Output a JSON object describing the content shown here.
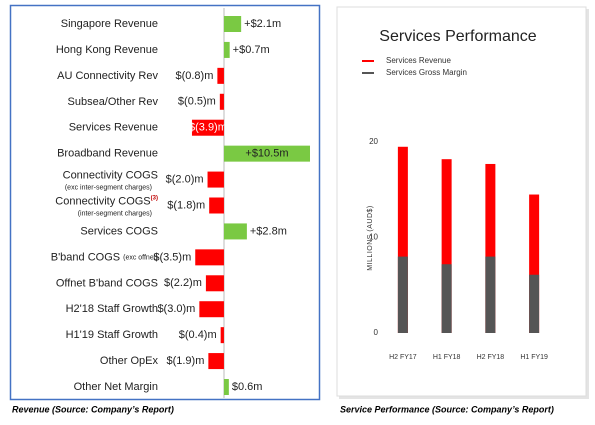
{
  "chart_data": [
    {
      "type": "hbar",
      "caption": "Revenue  (Source: Company’s Report)",
      "categories": [
        "Singapore Revenue",
        "Hong Kong Revenue",
        "AU Connectivity Rev",
        "Subsea/Other Rev",
        "Services Revenue",
        "Broadband Revenue",
        "Connectivity COGS",
        "Connectivity COGS",
        "Services COGS",
        "B'band COGS",
        "Offnet B'band COGS",
        "H2'18 Staff Growth",
        "H1'19 Staff Growth",
        "Other OpEx",
        "Other Net Margin"
      ],
      "category_superscripts": [
        null,
        null,
        null,
        null,
        null,
        null,
        null,
        "(3)",
        null,
        null,
        null,
        null,
        null,
        null,
        null
      ],
      "category_notes": [
        null,
        null,
        null,
        null,
        null,
        null,
        "(exc inter-segment charges)",
        "(inter-segment charges)",
        null,
        "(exc offnet)",
        null,
        null,
        null,
        null,
        null
      ],
      "values": [
        2.1,
        0.7,
        -0.8,
        -0.5,
        -3.9,
        10.5,
        -2.0,
        -1.8,
        2.8,
        -3.5,
        -2.2,
        -3.0,
        -0.4,
        -1.9,
        0.6
      ],
      "value_labels": [
        "+$2.1m",
        "+$0.7m",
        "$(0.8)m",
        "$(0.5)m",
        "$(3.9)m",
        "+$10.5m",
        "$(2.0)m",
        "$(1.8)m",
        "+$2.8m",
        "$(3.5)m",
        "$(2.2)m",
        "$(3.0)m",
        "$(0.4)m",
        "$(1.9)m",
        "$0.6m"
      ],
      "positive_color": "#7ac943",
      "negative_color": "#ff0000",
      "xlim": [
        -7.8,
        10.5
      ]
    },
    {
      "type": "overlay-bar",
      "title": "Services Performance",
      "caption": "Service Performance (Source: Company’s Report)",
      "y_label": "MILLIONS (AUD$)",
      "categories": [
        "H2 FY17",
        "H1 FY18",
        "H2 FY18",
        "H1 FY19"
      ],
      "series": [
        {
          "name": "Services Revenue",
          "color": "#ff0000",
          "values": [
            19.5,
            18.2,
            17.7,
            14.5
          ]
        },
        {
          "name": "Services Gross Margin",
          "color": "#555555",
          "values": [
            8.0,
            7.2,
            8.0,
            6.1
          ]
        }
      ],
      "ylim": [
        0,
        20
      ],
      "yticks": [
        0,
        10,
        20
      ],
      "legend": "top-left"
    }
  ]
}
